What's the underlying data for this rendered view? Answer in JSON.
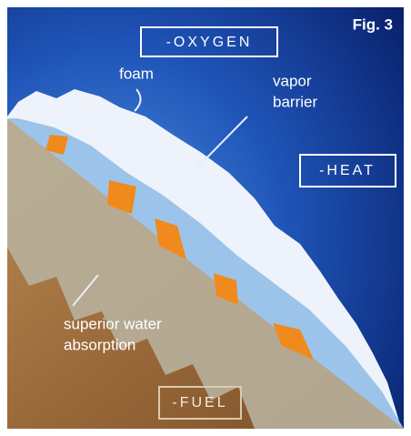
{
  "figure_label": "Fig. 3",
  "labels": {
    "oxygen": "-OXYGEN",
    "heat": "-HEAT",
    "fuel": "-FUEL"
  },
  "annotations": {
    "foam": "foam",
    "vapor_barrier": [
      "vapor",
      "barrier"
    ],
    "water_absorption": [
      "superior water",
      "absorption"
    ]
  }
}
